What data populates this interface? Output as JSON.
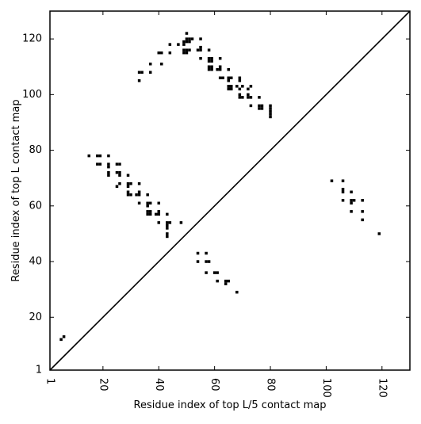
{
  "chart_data": {
    "type": "scatter",
    "title": "",
    "xlabel": "Residue index of top L/5 contact map",
    "ylabel": "Residue index of top L contact map",
    "xlim": [
      1,
      130
    ],
    "ylim": [
      1,
      130
    ],
    "x_ticks": [
      1,
      20,
      40,
      60,
      80,
      100,
      120
    ],
    "y_ticks": [
      1,
      20,
      40,
      60,
      80,
      100,
      120
    ],
    "x_tick_labels": [
      "1",
      "20",
      "40",
      "60",
      "80",
      "100",
      "120"
    ],
    "y_tick_labels": [
      "1",
      "20",
      "40",
      "60",
      "80",
      "100",
      "120"
    ],
    "x_tick_rotation": -90,
    "grid": false,
    "diagonal_line": true,
    "mark_color": "#000000",
    "series": [
      {
        "points": [
          [
            5,
            12
          ],
          [
            6,
            13
          ],
          [
            15,
            78
          ],
          [
            18,
            78
          ],
          [
            19,
            78
          ],
          [
            18,
            75
          ],
          [
            19,
            75
          ],
          [
            22,
            78
          ],
          [
            22,
            75
          ],
          [
            22,
            74
          ],
          [
            22,
            72
          ],
          [
            22,
            71
          ],
          [
            25,
            75
          ],
          [
            26,
            75
          ],
          [
            25,
            72
          ],
          [
            26,
            71
          ],
          [
            26,
            72
          ],
          [
            25,
            67
          ],
          [
            26,
            68
          ],
          [
            29,
            71
          ],
          [
            29,
            68
          ],
          [
            29,
            67
          ],
          [
            30,
            68
          ],
          [
            29,
            65
          ],
          [
            30,
            64
          ],
          [
            29,
            64
          ],
          [
            32,
            64
          ],
          [
            33,
            64
          ],
          [
            33,
            65
          ],
          [
            33,
            68
          ],
          [
            33,
            61
          ],
          [
            36,
            64
          ],
          [
            36,
            61
          ],
          [
            37,
            61
          ],
          [
            36,
            60
          ],
          [
            36,
            58
          ],
          [
            37,
            58
          ],
          [
            36,
            57
          ],
          [
            37,
            57
          ],
          [
            39,
            57
          ],
          [
            40,
            58
          ],
          [
            40,
            61
          ],
          [
            40,
            57
          ],
          [
            40,
            54
          ],
          [
            43,
            57
          ],
          [
            43,
            54
          ],
          [
            44,
            54
          ],
          [
            43,
            53
          ],
          [
            43,
            52
          ],
          [
            43,
            50
          ],
          [
            43,
            49
          ],
          [
            48,
            54
          ],
          [
            33,
            108
          ],
          [
            34,
            108
          ],
          [
            33,
            105
          ],
          [
            37,
            108
          ],
          [
            37,
            111
          ],
          [
            40,
            115
          ],
          [
            41,
            115
          ],
          [
            41,
            111
          ],
          [
            44,
            118
          ],
          [
            44,
            115
          ],
          [
            47,
            118
          ],
          [
            49,
            118
          ],
          [
            49,
            119
          ],
          [
            49,
            116
          ],
          [
            49,
            115
          ],
          [
            50,
            122
          ],
          [
            50,
            120
          ],
          [
            50,
            119
          ],
          [
            50,
            116
          ],
          [
            50,
            115
          ],
          [
            51,
            120
          ],
          [
            51,
            119
          ],
          [
            51,
            116
          ],
          [
            52,
            120
          ],
          [
            55,
            120
          ],
          [
            55,
            117
          ],
          [
            55,
            116
          ],
          [
            54,
            116
          ],
          [
            55,
            113
          ],
          [
            58,
            116
          ],
          [
            58,
            113
          ],
          [
            59,
            113
          ],
          [
            58,
            112
          ],
          [
            59,
            112
          ],
          [
            58,
            110
          ],
          [
            59,
            110
          ],
          [
            58,
            109
          ],
          [
            59,
            109
          ],
          [
            61,
            109
          ],
          [
            62,
            109
          ],
          [
            62,
            110
          ],
          [
            62,
            113
          ],
          [
            62,
            106
          ],
          [
            63,
            106
          ],
          [
            65,
            109
          ],
          [
            65,
            106
          ],
          [
            66,
            106
          ],
          [
            65,
            105
          ],
          [
            65,
            103
          ],
          [
            66,
            103
          ],
          [
            65,
            102
          ],
          [
            66,
            102
          ],
          [
            69,
            106
          ],
          [
            69,
            105
          ],
          [
            68,
            103
          ],
          [
            69,
            102
          ],
          [
            70,
            103
          ],
          [
            69,
            100
          ],
          [
            70,
            99
          ],
          [
            69,
            99
          ],
          [
            72,
            102
          ],
          [
            73,
            103
          ],
          [
            72,
            100
          ],
          [
            73,
            99
          ],
          [
            72,
            99
          ],
          [
            73,
            96
          ],
          [
            76,
            99
          ],
          [
            76,
            96
          ],
          [
            77,
            96
          ],
          [
            76,
            95
          ],
          [
            77,
            95
          ],
          [
            80,
            96
          ],
          [
            80,
            95
          ],
          [
            80,
            94
          ],
          [
            80,
            93
          ],
          [
            80,
            92
          ],
          [
            54,
            43
          ],
          [
            54,
            40
          ],
          [
            57,
            43
          ],
          [
            57,
            40
          ],
          [
            58,
            40
          ],
          [
            57,
            36
          ],
          [
            60,
            36
          ],
          [
            61,
            36
          ],
          [
            61,
            33
          ],
          [
            64,
            33
          ],
          [
            65,
            33
          ],
          [
            64,
            32
          ],
          [
            68,
            29
          ],
          [
            102,
            69
          ],
          [
            106,
            69
          ],
          [
            106,
            66
          ],
          [
            106,
            65
          ],
          [
            106,
            62
          ],
          [
            109,
            65
          ],
          [
            109,
            62
          ],
          [
            110,
            62
          ],
          [
            109,
            61
          ],
          [
            109,
            58
          ],
          [
            113,
            62
          ],
          [
            113,
            58
          ],
          [
            113,
            55
          ],
          [
            119,
            50
          ]
        ]
      }
    ]
  }
}
